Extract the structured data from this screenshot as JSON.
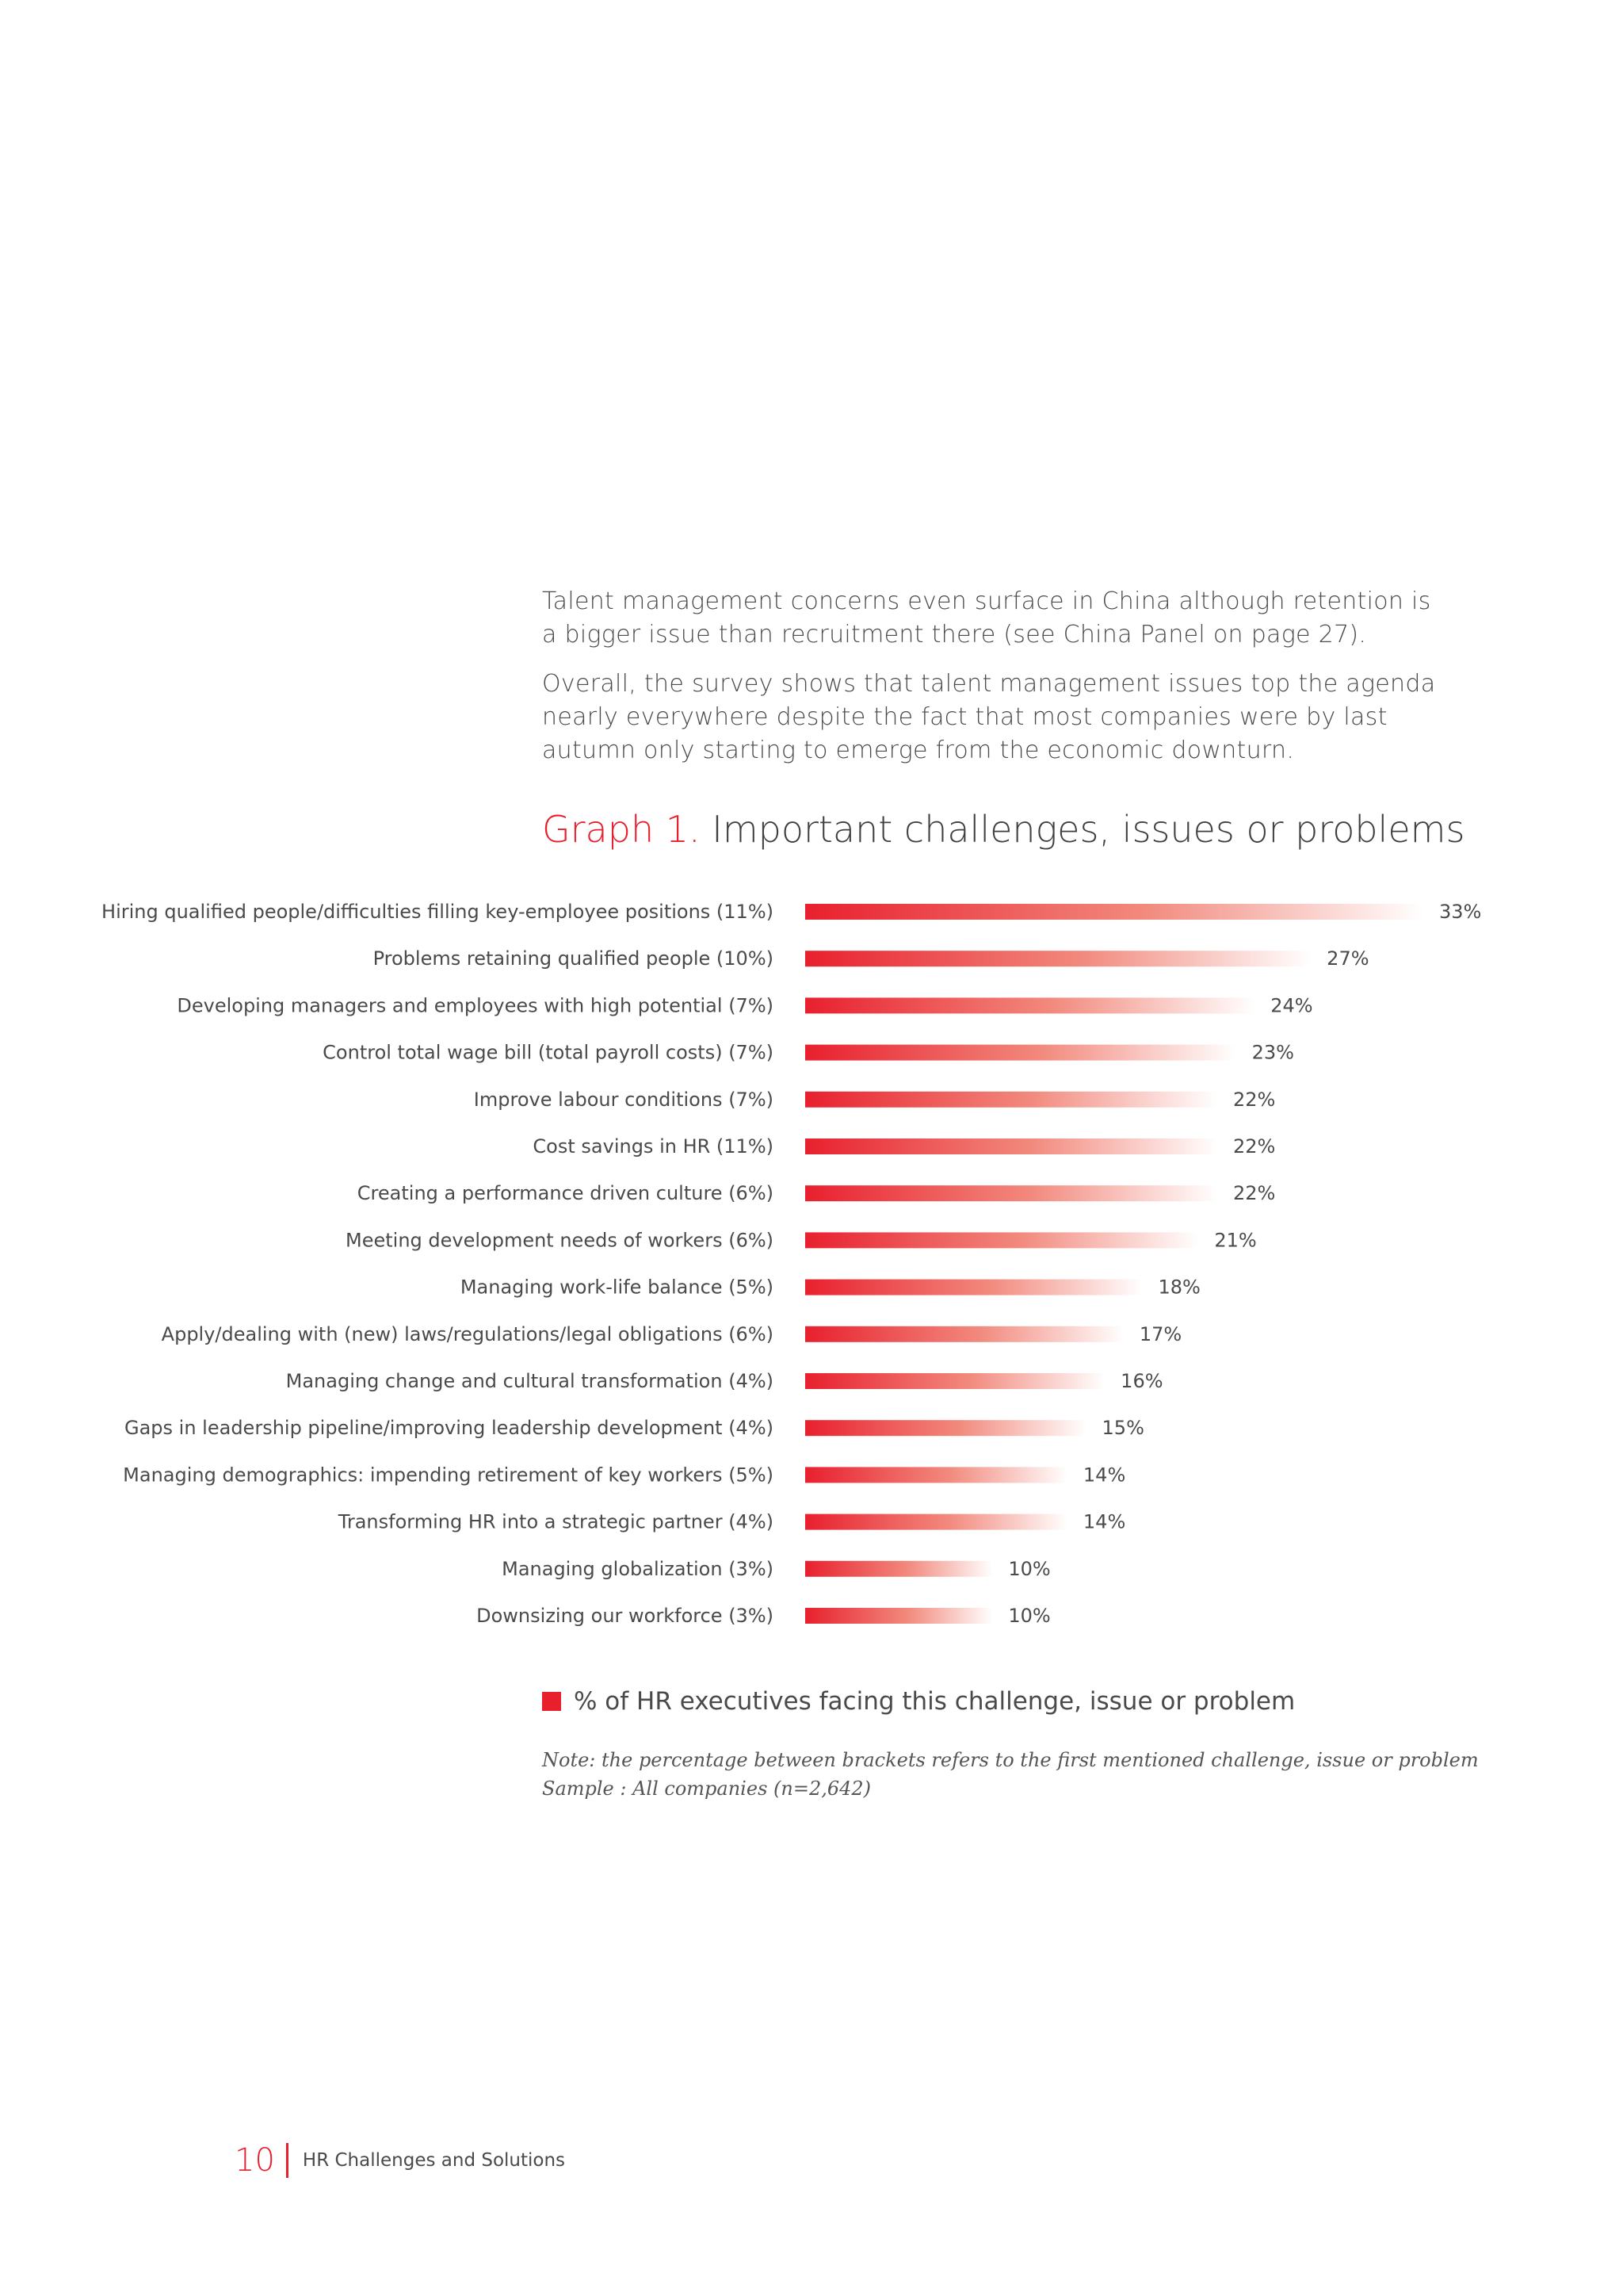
{
  "intro": {
    "paragraphs": [
      "Talent management concerns even surface in China although retention is a bigger issue than recruitment there (see China Panel on page 27).",
      "Overall, the survey shows that talent management issues top the agenda nearly everywhere despite the fact that most companies were by last autumn only starting to emerge from the economic downturn."
    ]
  },
  "graph_title": {
    "prefix": "Graph 1.",
    "text": "Important challenges, issues or problems"
  },
  "chart_data": {
    "type": "bar",
    "orientation": "horizontal",
    "title": "Graph 1. Important challenges, issues or problems",
    "categories": [
      "Hiring qualified people/difficulties filling key-employee positions (11%)",
      "Problems retaining qualified people (10%)",
      "Developing managers and employees with high potential (7%)",
      "Control total wage bill (total payroll costs) (7%)",
      "Improve labour conditions (7%)",
      "Cost savings in HR (11%)",
      "Creating a performance driven culture (6%)",
      "Meeting development needs of workers (6%)",
      "Managing work-life balance (5%)",
      "Apply/dealing with (new) laws/regulations/legal obligations (6%)",
      "Managing change and cultural transformation (4%)",
      "Gaps in leadership pipeline/improving leadership development (4%)",
      "Managing demographics: impending retirement of key workers (5%)",
      "Transforming HR into a strategic partner (4%)",
      "Managing globalization (3%)",
      "Downsizing our workforce (3%)"
    ],
    "values": [
      33,
      27,
      24,
      23,
      22,
      22,
      22,
      21,
      18,
      17,
      16,
      15,
      14,
      14,
      10,
      10
    ],
    "value_labels": [
      "33%",
      "27%",
      "24%",
      "23%",
      "22%",
      "22%",
      "22%",
      "21%",
      "18%",
      "17%",
      "16%",
      "15%",
      "14%",
      "14%",
      "10%",
      "10%"
    ],
    "series": [
      {
        "name": "% of HR executives facing this challenge, issue or problem",
        "values": [
          33,
          27,
          24,
          23,
          22,
          22,
          22,
          21,
          18,
          17,
          16,
          15,
          14,
          14,
          10,
          10
        ]
      }
    ],
    "xlim": [
      0,
      33
    ],
    "grid": false,
    "legend_position": "bottom-left",
    "bar_color_start": "#e8202e",
    "bar_color_end": "#ffffff"
  },
  "legend": {
    "label": "% of HR executives facing this challenge, issue or problem",
    "color": "#e8202e"
  },
  "note": {
    "line1": "Note: the percentage between brackets refers to the first mentioned challenge, issue or problem",
    "line2": "Sample : All companies (n=2,642)"
  },
  "footer": {
    "page_number": "10",
    "label": "HR Challenges and Solutions"
  }
}
